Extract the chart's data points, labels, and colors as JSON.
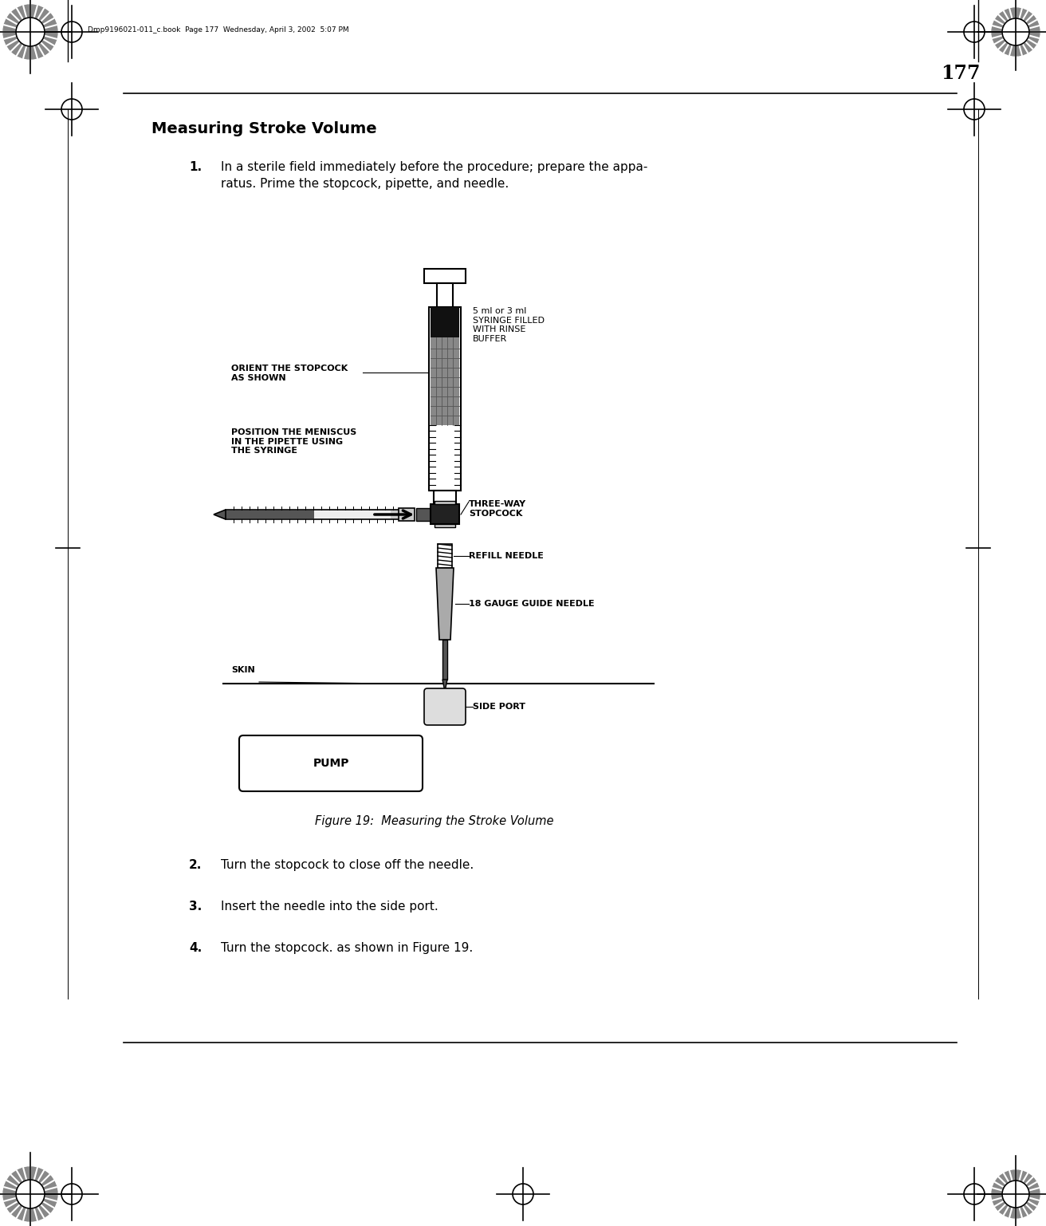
{
  "page_number": "177",
  "header_text": "Dmp9196021-011_c.book  Page 177  Wednesday, April 3, 2002  5:07 PM",
  "section_title": "Measuring Stroke Volume",
  "step1_num": "1.",
  "step1": "In a sterile field immediately before the procedure; prepare the appa-\nratus. Prime the stopcock, pipette, and needle.",
  "step2_num": "2.",
  "step2": "Turn the stopcock to close off the needle.",
  "step3_num": "3.",
  "step3": "Insert the needle into the side port.",
  "step4_num": "4.",
  "step4": "Turn the stopcock. as shown in Figure 19.",
  "figure_caption": "Figure 19:  Measuring the Stroke Volume",
  "label_orient": "ORIENT THE STOPCOCK\nAS SHOWN",
  "label_meniscus": "POSITION THE MENISCUS\nIN THE PIPETTE USING\nTHE SYRINGE",
  "label_syringe": "5 ml or 3 ml\nSYRINGE FILLED\nWITH RINSE\nBUFFER",
  "label_stopcock": "THREE-WAY\nSTOPCOCK",
  "label_refill": "REFILL NEEDLE",
  "label_18gauge": "18 GAUGE GUIDE NEEDLE",
  "label_skin": "SKIN",
  "label_pump": "PUMP",
  "label_sideport": "SIDE PORT",
  "bg_color": "#ffffff",
  "text_color": "#000000"
}
